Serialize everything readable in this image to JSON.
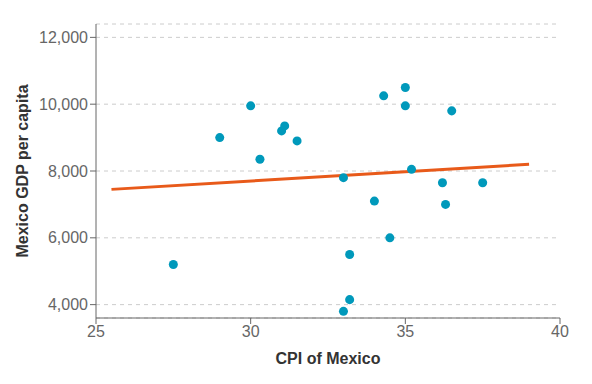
{
  "chart_data": {
    "type": "scatter",
    "xlabel": "CPI of Mexico",
    "ylabel": "Mexico GDP per capita",
    "series": [
      {
        "type": "line",
        "color": "#E85A1A",
        "x": [
          25.5,
          39.0
        ],
        "values": [
          7450,
          8200
        ]
      },
      {
        "type": "scatter",
        "color": "#0099BB",
        "x": [
          27.5,
          29.0,
          30.0,
          30.3,
          31.0,
          31.1,
          31.5,
          33.0,
          33.0,
          33.2,
          33.2,
          34.0,
          34.3,
          34.5,
          35.0,
          35.0,
          35.2,
          36.2,
          36.3,
          36.5,
          37.5
        ],
        "values": [
          5200,
          9000,
          9950,
          8350,
          9200,
          9350,
          8900,
          3800,
          7800,
          5500,
          4150,
          7100,
          10250,
          6000,
          10500,
          9950,
          8050,
          7650,
          7000,
          9800,
          7650
        ]
      }
    ],
    "xlim": [
      25,
      40
    ],
    "ylim": [
      3600,
      12400
    ],
    "xticks": [
      25,
      30,
      35,
      40
    ],
    "yticks": [
      {
        "value": 4000,
        "label": "4,000"
      },
      {
        "value": 6000,
        "label": "6,000"
      },
      {
        "value": 8000,
        "label": "8,000"
      },
      {
        "value": 10000,
        "label": "10,000"
      },
      {
        "value": 12000,
        "label": "12,000"
      }
    ],
    "grid": "y"
  }
}
